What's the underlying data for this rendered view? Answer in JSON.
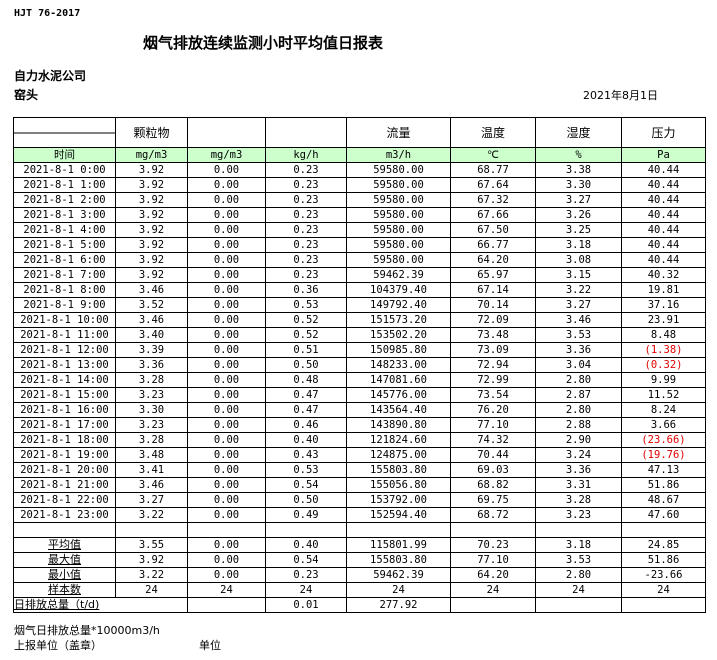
{
  "header": {
    "standard": "HJT 76-2017",
    "title": "烟气排放连续监测小时平均值日报表",
    "company": "自力水泥公司",
    "unit": "窑头",
    "date": "2021年8月1日"
  },
  "columns": {
    "names": [
      "",
      "颗粒物",
      "",
      "",
      "流量",
      "温度",
      "湿度",
      "压力"
    ],
    "units": [
      "时间",
      "mg/m3",
      "mg/m3",
      "kg/h",
      "m3/h",
      "℃",
      "%",
      "Pa"
    ]
  },
  "rows": [
    [
      "2021-8-1 0:00",
      "3.92",
      "0.00",
      "0.23",
      "59580.00",
      "68.77",
      "3.38",
      "40.44"
    ],
    [
      "2021-8-1 1:00",
      "3.92",
      "0.00",
      "0.23",
      "59580.00",
      "67.64",
      "3.30",
      "40.44"
    ],
    [
      "2021-8-1 2:00",
      "3.92",
      "0.00",
      "0.23",
      "59580.00",
      "67.32",
      "3.27",
      "40.44"
    ],
    [
      "2021-8-1 3:00",
      "3.92",
      "0.00",
      "0.23",
      "59580.00",
      "67.66",
      "3.26",
      "40.44"
    ],
    [
      "2021-8-1 4:00",
      "3.92",
      "0.00",
      "0.23",
      "59580.00",
      "67.50",
      "3.25",
      "40.44"
    ],
    [
      "2021-8-1 5:00",
      "3.92",
      "0.00",
      "0.23",
      "59580.00",
      "66.77",
      "3.18",
      "40.44"
    ],
    [
      "2021-8-1 6:00",
      "3.92",
      "0.00",
      "0.23",
      "59580.00",
      "64.20",
      "3.08",
      "40.44"
    ],
    [
      "2021-8-1 7:00",
      "3.92",
      "0.00",
      "0.23",
      "59462.39",
      "65.97",
      "3.15",
      "40.32"
    ],
    [
      "2021-8-1 8:00",
      "3.46",
      "0.00",
      "0.36",
      "104379.40",
      "67.14",
      "3.22",
      "19.81"
    ],
    [
      "2021-8-1 9:00",
      "3.52",
      "0.00",
      "0.53",
      "149792.40",
      "70.14",
      "3.27",
      "37.16"
    ],
    [
      "2021-8-1 10:00",
      "3.46",
      "0.00",
      "0.52",
      "151573.20",
      "72.09",
      "3.46",
      "23.91"
    ],
    [
      "2021-8-1 11:00",
      "3.40",
      "0.00",
      "0.52",
      "153502.20",
      "73.48",
      "3.53",
      "8.48"
    ],
    [
      "2021-8-1 12:00",
      "3.39",
      "0.00",
      "0.51",
      "150985.80",
      "73.09",
      "3.36",
      "(1.38)"
    ],
    [
      "2021-8-1 13:00",
      "3.36",
      "0.00",
      "0.50",
      "148233.00",
      "72.94",
      "3.04",
      "(0.32)"
    ],
    [
      "2021-8-1 14:00",
      "3.28",
      "0.00",
      "0.48",
      "147081.60",
      "72.99",
      "2.80",
      "9.99"
    ],
    [
      "2021-8-1 15:00",
      "3.23",
      "0.00",
      "0.47",
      "145776.00",
      "73.54",
      "2.87",
      "11.52"
    ],
    [
      "2021-8-1 16:00",
      "3.30",
      "0.00",
      "0.47",
      "143564.40",
      "76.20",
      "2.80",
      "8.24"
    ],
    [
      "2021-8-1 17:00",
      "3.23",
      "0.00",
      "0.46",
      "143890.80",
      "77.10",
      "2.88",
      "3.66"
    ],
    [
      "2021-8-1 18:00",
      "3.28",
      "0.00",
      "0.40",
      "121824.60",
      "74.32",
      "2.90",
      "(23.66)"
    ],
    [
      "2021-8-1 19:00",
      "3.48",
      "0.00",
      "0.43",
      "124875.00",
      "70.44",
      "3.24",
      "(19.76)"
    ],
    [
      "2021-8-1 20:00",
      "3.41",
      "0.00",
      "0.53",
      "155803.80",
      "69.03",
      "3.36",
      "47.13"
    ],
    [
      "2021-8-1 21:00",
      "3.46",
      "0.00",
      "0.54",
      "155056.80",
      "68.82",
      "3.31",
      "51.86"
    ],
    [
      "2021-8-1 22:00",
      "3.27",
      "0.00",
      "0.50",
      "153792.00",
      "69.75",
      "3.28",
      "48.67"
    ],
    [
      "2021-8-1 23:00",
      "3.22",
      "0.00",
      "0.49",
      "152594.40",
      "68.72",
      "3.23",
      "47.60"
    ]
  ],
  "stats": [
    [
      "平均值",
      "3.55",
      "0.00",
      "0.40",
      "115801.99",
      "70.23",
      "3.18",
      "24.85"
    ],
    [
      "最大值",
      "3.92",
      "0.00",
      "0.54",
      "155803.80",
      "77.10",
      "3.53",
      "51.86"
    ],
    [
      "最小值",
      "3.22",
      "0.00",
      "0.23",
      "59462.39",
      "64.20",
      "2.80",
      "-23.66"
    ],
    [
      "样本数",
      "24",
      "24",
      "24",
      "24",
      "24",
      "24",
      "24"
    ]
  ],
  "daily_total": {
    "label": "日排放总量（t/d)",
    "values": [
      "",
      "0.01",
      "277.92",
      "",
      "",
      ""
    ]
  },
  "footer": {
    "note": "烟气日排放总量*10000m3/h",
    "report_unit": "上报单位（盖章）",
    "unit_label": "单位"
  },
  "colors": {
    "unit_row_bg": "#ccffcc",
    "negative": "#e00000"
  }
}
